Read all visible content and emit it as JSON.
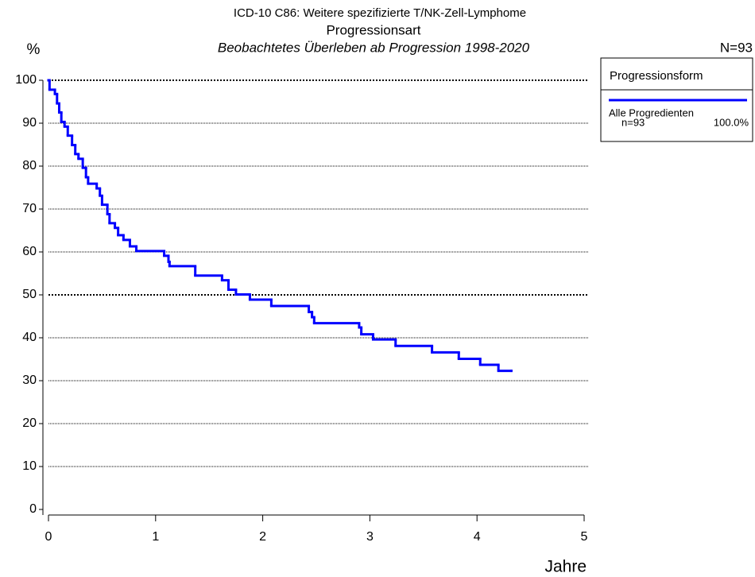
{
  "chart_data": {
    "type": "step",
    "title": "ICD-10 C86: Weitere spezifizierte T/NK-Zell-Lymphome",
    "subtitle": "Progressionsart",
    "period_title": "Beobachtetes Überleben ab Progression 1998-2020",
    "y_label": "%",
    "x_label": "Jahre",
    "n_label": "N=93",
    "legend": {
      "title": "Progressionsform"
    },
    "xlim": [
      0,
      5
    ],
    "xticks": [
      0,
      1,
      2,
      3,
      4,
      5
    ],
    "ylim": [
      0,
      100
    ],
    "yticks": [
      0,
      10,
      20,
      30,
      40,
      50,
      60,
      70,
      80,
      90,
      100
    ],
    "grid": true,
    "major_grid_every": 50,
    "x": [
      0,
      0.01,
      0.06,
      0.08,
      0.1,
      0.12,
      0.15,
      0.18,
      0.22,
      0.25,
      0.28,
      0.32,
      0.35,
      0.37,
      0.45,
      0.48,
      0.5,
      0.55,
      0.57,
      0.62,
      0.65,
      0.7,
      0.76,
      0.82,
      1.08,
      1.12,
      1.13,
      1.37,
      1.62,
      1.68,
      1.75,
      1.88,
      2.08,
      2.43,
      2.46,
      2.48,
      2.9,
      2.92,
      3.03,
      3.24,
      3.58,
      3.83,
      4.03,
      4.2,
      4.32
    ],
    "series": [
      {
        "name": "Alle Progredienten",
        "n_label": "n=93",
        "share_label": "100.0%",
        "color": "#0000ff",
        "values": [
          100,
          97.8,
          96.8,
          94.6,
          92.5,
          90.3,
          89.2,
          87.1,
          84.9,
          82.8,
          81.7,
          79.6,
          77.4,
          75.9,
          74.8,
          73.1,
          71.0,
          68.8,
          66.7,
          65.6,
          63.9,
          62.8,
          61.3,
          60.2,
          59.1,
          57.7,
          56.7,
          54.5,
          53.4,
          51.2,
          50.1,
          48.9,
          47.4,
          46.0,
          44.8,
          43.4,
          42.4,
          40.8,
          39.6,
          38.1,
          36.6,
          35.1,
          33.7,
          32.3,
          32.3
        ]
      }
    ]
  }
}
